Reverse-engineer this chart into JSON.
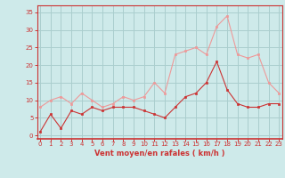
{
  "x": [
    0,
    1,
    2,
    3,
    4,
    5,
    6,
    7,
    8,
    9,
    10,
    11,
    12,
    13,
    14,
    15,
    16,
    17,
    18,
    19,
    20,
    21,
    22,
    23
  ],
  "y_mean": [
    1,
    6,
    2,
    7,
    6,
    8,
    7,
    8,
    8,
    8,
    7,
    6,
    5,
    8,
    11,
    12,
    15,
    21,
    13,
    9,
    8,
    8,
    9,
    9
  ],
  "y_gust": [
    8,
    10,
    11,
    9,
    12,
    10,
    8,
    9,
    11,
    10,
    11,
    15,
    12,
    23,
    24,
    25,
    23,
    31,
    34,
    23,
    22,
    23,
    15,
    12
  ],
  "xlabel": "Vent moyen/en rafales ( km/h )",
  "bg_color": "#ceeaea",
  "grid_color": "#aacece",
  "line_color_mean": "#cc3333",
  "line_color_gust": "#ee9999",
  "ytick_labels": [
    "0",
    "5",
    "10",
    "15",
    "20",
    "25",
    "30",
    "35"
  ],
  "ytick_vals": [
    0,
    5,
    10,
    15,
    20,
    25,
    30,
    35
  ],
  "xtick_vals": [
    0,
    1,
    2,
    3,
    4,
    5,
    6,
    7,
    8,
    9,
    10,
    11,
    12,
    13,
    14,
    15,
    16,
    17,
    18,
    19,
    20,
    21,
    22,
    23
  ],
  "ylim": [
    -1,
    37
  ],
  "xlim": [
    -0.3,
    23.3
  ],
  "tick_color": "#cc3333",
  "xlabel_color": "#cc3333",
  "spine_color": "#cc3333"
}
